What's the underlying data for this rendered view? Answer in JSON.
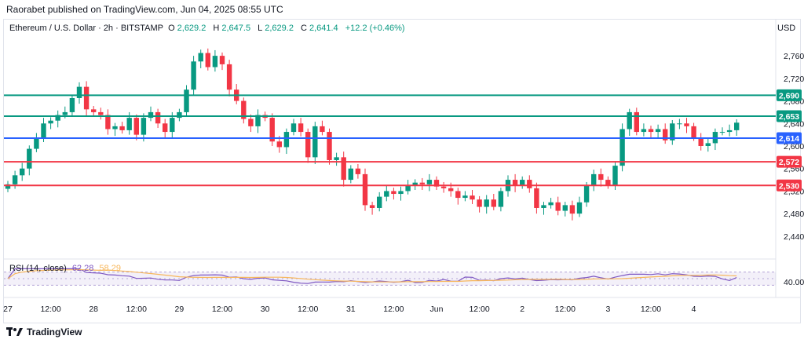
{
  "header": {
    "published": "Raorabet published on TradingView.com, Jun 04, 2025 08:55 UTC"
  },
  "symbol": {
    "name": "Ethereum / U.S. Dollar · 2h · BITSTAMP",
    "o_label": "O",
    "o_value": "2,629.2",
    "h_label": "H",
    "h_value": "2,647.5",
    "l_label": "L",
    "l_value": "2,629.2",
    "c_label": "C",
    "c_value": "2,641.4",
    "change": "+12.2 (+0.46%)"
  },
  "currency": "USD",
  "footer": {
    "brand": "TradingView"
  },
  "chart_data": {
    "type": "candlestick",
    "price_axis": {
      "ylim": [
        2405,
        2795
      ],
      "ticks": [
        2440,
        2480,
        2520,
        2560,
        2600,
        2640,
        2680,
        2720,
        2760
      ],
      "tick_labels": [
        "2,440",
        "2,480",
        "2,520",
        "2,560",
        "2,600",
        "2,640",
        "2,680",
        "2,720",
        "2,760"
      ]
    },
    "levels": [
      {
        "label": "2,690",
        "value": 2690,
        "color": "#089981"
      },
      {
        "label": "2,653",
        "value": 2653,
        "color": "#089981"
      },
      {
        "label": "2,614",
        "value": 2614,
        "color": "#2962ff"
      },
      {
        "label": "2,572",
        "value": 2572,
        "color": "#f23645"
      },
      {
        "label": "2,530",
        "value": 2530,
        "color": "#f23645"
      }
    ],
    "time_labels": [
      "27",
      "12:00",
      "28",
      "12:00",
      "29",
      "12:00",
      "30",
      "12:00",
      "31",
      "12:00",
      "Jun",
      "12:00",
      "2",
      "12:00",
      "3",
      "12:00",
      "4"
    ],
    "time_label_index": [
      0,
      6,
      12,
      18,
      24,
      30,
      36,
      42,
      48,
      54,
      60,
      66,
      72,
      78,
      84,
      90,
      96
    ],
    "closes": [
      2532,
      2548,
      2560,
      2595,
      2615,
      2640,
      2645,
      2655,
      2660,
      2685,
      2705,
      2665,
      2660,
      2655,
      2630,
      2635,
      2628,
      2650,
      2620,
      2650,
      2660,
      2640,
      2625,
      2650,
      2660,
      2700,
      2750,
      2765,
      2740,
      2760,
      2745,
      2700,
      2680,
      2648,
      2635,
      2655,
      2650,
      2608,
      2598,
      2625,
      2640,
      2625,
      2580,
      2635,
      2625,
      2575,
      2580,
      2540,
      2560,
      2550,
      2495,
      2490,
      2510,
      2520,
      2515,
      2520,
      2530,
      2535,
      2532,
      2540,
      2528,
      2525,
      2520,
      2508,
      2512,
      2505,
      2492,
      2505,
      2492,
      2520,
      2540,
      2530,
      2540,
      2525,
      2490,
      2495,
      2500,
      2485,
      2495,
      2480,
      2500,
      2530,
      2550,
      2540,
      2530,
      2565,
      2630,
      2660,
      2625,
      2630,
      2625,
      2630,
      2610,
      2640,
      2640,
      2635,
      2615,
      2600,
      2605,
      2625,
      2625,
      2628,
      2641.4
    ],
    "rsi": {
      "title": "RSI (14, close)",
      "value": "62.28",
      "ma_value": "58.29",
      "axis_label": "40.00",
      "ylim": [
        0,
        100
      ],
      "bands": [
        30,
        70
      ]
    },
    "colors": {
      "up": "#089981",
      "down": "#f23645",
      "rsi": "#7e57c2",
      "rsi_ma": "#f7b75c",
      "band": "#7e57c2"
    }
  }
}
